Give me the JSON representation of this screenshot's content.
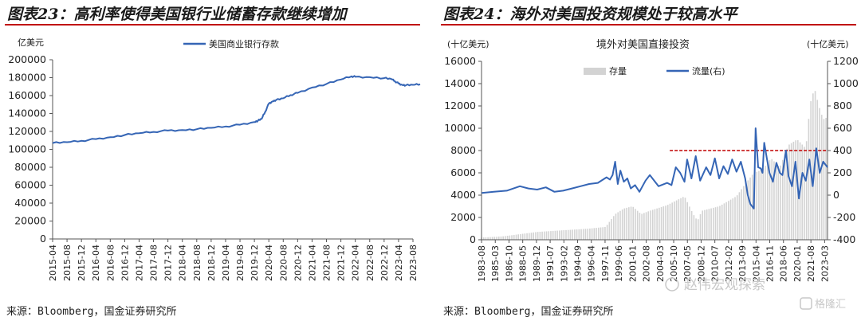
{
  "left": {
    "title": "图表23：高利率使得美国银行业储蓄存款继续增加",
    "source": "来源：Bloomberg，国金证券研究所"
  },
  "right": {
    "title": "图表24：海外对美国投资规模处于较高水平",
    "source": "来源：Bloomberg，国金证券研究所"
  },
  "watermark": {
    "text": "赵伟宏观探索",
    "logo": "格隆汇"
  },
  "colors": {
    "line": "#3565b5",
    "bar": "#d3d3d3",
    "refline": "#c00000",
    "title_rule": "#c00000"
  },
  "chart_data": [
    {
      "type": "line",
      "unit_label": "亿美元",
      "series": [
        {
          "name": "美国商业银行存款",
          "x": [
            "2015-04",
            "2015-08",
            "2015-12",
            "2016-04",
            "2016-08",
            "2016-12",
            "2017-04",
            "2017-08",
            "2017-12",
            "2018-04",
            "2018-08",
            "2018-12",
            "2019-04",
            "2019-08",
            "2019-12",
            "2020-01",
            "2020-02",
            "2020-03",
            "2020-04",
            "2020-05",
            "2020-06",
            "2020-08",
            "2020-10",
            "2020-12",
            "2021-04",
            "2021-08",
            "2021-12",
            "2022-03",
            "2022-04",
            "2022-08",
            "2022-12",
            "2023-02",
            "2023-03",
            "2023-04",
            "2023-05",
            "2023-06",
            "2023-08",
            "2023-10"
          ],
          "values": [
            107000,
            108000,
            109500,
            111500,
            113500,
            116000,
            118000,
            119500,
            121000,
            121500,
            122500,
            124000,
            125500,
            127500,
            130500,
            132000,
            134000,
            142000,
            151000,
            153500,
            155000,
            157000,
            160500,
            163000,
            169000,
            173000,
            178000,
            181500,
            181000,
            180500,
            179500,
            178500,
            176000,
            173500,
            172000,
            171500,
            172000,
            172500
          ]
        }
      ],
      "x_ticks": [
        "2015-04",
        "2015-08",
        "2015-12",
        "2016-04",
        "2016-08",
        "2016-12",
        "2017-04",
        "2017-08",
        "2017-12",
        "2018-04",
        "2018-08",
        "2018-12",
        "2019-04",
        "2019-08",
        "2019-12",
        "2020-04",
        "2020-08",
        "2020-12",
        "2021-04",
        "2021-08",
        "2021-12",
        "2022-04",
        "2022-08",
        "2022-12",
        "2023-04",
        "2023-08"
      ],
      "y_ticks": [
        0,
        20000,
        40000,
        60000,
        80000,
        100000,
        120000,
        140000,
        160000,
        180000,
        200000
      ],
      "ylim": [
        0,
        200000
      ],
      "grid": false,
      "legend_position": "top-center"
    },
    {
      "type": "bar+line",
      "title": "境外对美国直接投资",
      "unit_left": "(十亿美元)",
      "unit_right": "(十亿美元)",
      "x_ticks": [
        "1983-08",
        "1985-03",
        "1986-10",
        "1988-05",
        "1989-12",
        "1991-07",
        "1993-02",
        "1994-09",
        "1996-04",
        "1997-11",
        "1999-06",
        "2001-01",
        "2002-08",
        "2004-03",
        "2005-10",
        "2007-05",
        "2008-12",
        "2010-07",
        "2012-02",
        "2013-09",
        "2015-04",
        "2016-11",
        "2018-06",
        "2020-01",
        "2021-08",
        "2023-03"
      ],
      "x_start_year": 1983.58,
      "x_end_year": 2023.5,
      "y_left_ticks": [
        0,
        2000,
        4000,
        6000,
        8000,
        10000,
        12000,
        14000,
        16000
      ],
      "ylim_left": [
        0,
        16000
      ],
      "y_right_ticks": [
        -400,
        -200,
        0,
        200,
        400,
        600,
        800,
        1000,
        1200
      ],
      "ylim_right": [
        -400,
        1200
      ],
      "reference_line": {
        "axis": "right",
        "value": 400,
        "from": 2005.3,
        "to": 2023.5
      },
      "series": [
        {
          "name": "存量",
          "axis": "left",
          "style": "bar",
          "x": [
            1983.6,
            1986,
            1988,
            1990,
            1992,
            1994,
            1996,
            1997.9,
            1999,
            2000,
            2001,
            2002,
            2003,
            2005,
            2007,
            2008,
            2008.5,
            2009,
            2011,
            2013,
            2014,
            2015,
            2016,
            2017,
            2018,
            2019,
            2020,
            2021,
            2021.5,
            2022,
            2022.5,
            2023,
            2023.5
          ],
          "values": [
            200,
            300,
            500,
            700,
            800,
            900,
            1000,
            1150,
            2300,
            2800,
            3000,
            2300,
            2600,
            3100,
            3900,
            2300,
            1700,
            2600,
            3000,
            3900,
            5000,
            6000,
            6300,
            7300,
            6500,
            8500,
            9000,
            8200,
            12200,
            13600,
            12000,
            10800,
            11000
          ]
        },
        {
          "name": "流量(右)",
          "axis": "right",
          "style": "line",
          "x": [
            1983.6,
            1985,
            1986.5,
            1988,
            1989,
            1990,
            1991,
            1992,
            1993,
            1994,
            1995,
            1996,
            1997,
            1998,
            1998.4,
            1998.7,
            1999,
            1999.3,
            1999.6,
            2000,
            2000.4,
            2000.8,
            2001.3,
            2001.8,
            2002.5,
            2003,
            2004,
            2005,
            2005.5,
            2006,
            2006.5,
            2007,
            2007.3,
            2007.8,
            2008.3,
            2008.8,
            2009.5,
            2010,
            2010.5,
            2011,
            2011.5,
            2012,
            2012.5,
            2013,
            2013.5,
            2014,
            2014.3,
            2014.6,
            2015,
            2015.2,
            2015.5,
            2015.8,
            2016,
            2016.2,
            2016.5,
            2016.8,
            2017.2,
            2017.6,
            2018,
            2018.3,
            2018.7,
            2019,
            2019.4,
            2019.8,
            2020.2,
            2020.6,
            2021,
            2021.4,
            2021.8,
            2022.2,
            2022.6,
            2023,
            2023.5
          ],
          "values": [
            20,
            30,
            40,
            80,
            60,
            50,
            70,
            30,
            40,
            60,
            80,
            100,
            110,
            160,
            140,
            180,
            300,
            100,
            220,
            120,
            150,
            60,
            90,
            30,
            130,
            180,
            80,
            110,
            90,
            250,
            200,
            120,
            320,
            150,
            350,
            130,
            250,
            180,
            330,
            150,
            260,
            190,
            320,
            210,
            300,
            150,
            0,
            -80,
            -120,
            600,
            250,
            240,
            200,
            470,
            330,
            200,
            120,
            290,
            200,
            180,
            400,
            170,
            80,
            300,
            -30,
            200,
            130,
            320,
            80,
            420,
            200,
            300,
            250
          ]
        }
      ],
      "legend_position": "top-center"
    }
  ]
}
